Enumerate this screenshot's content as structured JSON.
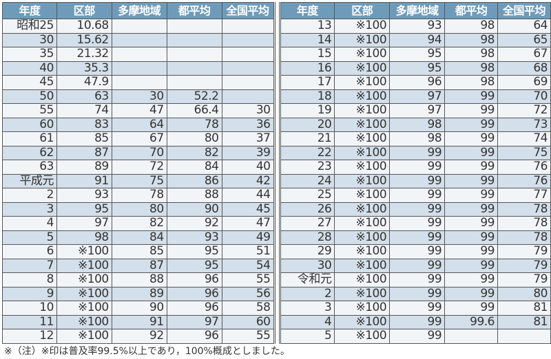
{
  "headers": [
    "年度",
    "区部",
    "多摩地域",
    "都平均",
    "全国平均"
  ],
  "left_rows": [
    [
      "昭和25",
      "10.68",
      "",
      "",
      ""
    ],
    [
      "30",
      "15.62",
      "",
      "",
      ""
    ],
    [
      "35",
      "21.32",
      "",
      "",
      ""
    ],
    [
      "40",
      "35.3",
      "",
      "",
      ""
    ],
    [
      "45",
      "47.9",
      "",
      "",
      ""
    ],
    [
      "50",
      "63",
      "30",
      "52.2",
      ""
    ],
    [
      "55",
      "74",
      "47",
      "66.4",
      "30"
    ],
    [
      "60",
      "83",
      "64",
      "78",
      "36"
    ],
    [
      "61",
      "85",
      "67",
      "80",
      "37"
    ],
    [
      "62",
      "87",
      "70",
      "82",
      "39"
    ],
    [
      "63",
      "89",
      "72",
      "84",
      "40"
    ],
    [
      "平成元",
      "91",
      "75",
      "86",
      "42"
    ],
    [
      "2",
      "93",
      "78",
      "88",
      "44"
    ],
    [
      "3",
      "95",
      "80",
      "90",
      "45"
    ],
    [
      "4",
      "97",
      "82",
      "92",
      "47"
    ],
    [
      "5",
      "98",
      "84",
      "93",
      "49"
    ],
    [
      "6",
      "※100",
      "85",
      "95",
      "51"
    ],
    [
      "7",
      "※100",
      "87",
      "95",
      "54"
    ],
    [
      "8",
      "※100",
      "88",
      "96",
      "55"
    ],
    [
      "9",
      "※100",
      "89",
      "96",
      "56"
    ],
    [
      "10",
      "※100",
      "90",
      "96",
      "58"
    ],
    [
      "11",
      "※100",
      "91",
      "97",
      "60"
    ],
    [
      "12",
      "※100",
      "92",
      "96",
      "55"
    ]
  ],
  "right_rows": [
    [
      "13",
      "※100",
      "93",
      "98",
      "64"
    ],
    [
      "14",
      "※100",
      "94",
      "98",
      "65"
    ],
    [
      "15",
      "※100",
      "95",
      "98",
      "67"
    ],
    [
      "16",
      "※100",
      "95",
      "98",
      "68"
    ],
    [
      "17",
      "※100",
      "96",
      "98",
      "69"
    ],
    [
      "18",
      "※100",
      "97",
      "99",
      "70"
    ],
    [
      "19",
      "※100",
      "97",
      "99",
      "72"
    ],
    [
      "20",
      "※100",
      "98",
      "99",
      "73"
    ],
    [
      "21",
      "※100",
      "98",
      "99",
      "74"
    ],
    [
      "22",
      "※100",
      "99",
      "99",
      "75"
    ],
    [
      "23",
      "※100",
      "99",
      "99",
      "76"
    ],
    [
      "24",
      "※100",
      "99",
      "99",
      "76"
    ],
    [
      "25",
      "※100",
      "99",
      "99",
      "77"
    ],
    [
      "26",
      "※100",
      "99",
      "99",
      "78"
    ],
    [
      "27",
      "※100",
      "99",
      "99",
      "78"
    ],
    [
      "28",
      "※100",
      "99",
      "99",
      "78"
    ],
    [
      "29",
      "※100",
      "99",
      "99",
      "79"
    ],
    [
      "30",
      "※100",
      "99",
      "99",
      "79"
    ],
    [
      "令和元",
      "※100",
      "99",
      "99",
      "79"
    ],
    [
      "2",
      "※100",
      "99",
      "99",
      "80"
    ],
    [
      "3",
      "※100",
      "99",
      "99",
      "81"
    ],
    [
      "4",
      "※100",
      "99",
      "99.6",
      "81"
    ],
    [
      "5",
      "※100",
      "99",
      "",
      ""
    ]
  ],
  "note": "※（注）※印は普及率99.5%以上であり，100%概成としました。",
  "colors": {
    "header": "#6f9bbb",
    "row_light": "#f2f5f8",
    "row_dark": "#d3dfea"
  }
}
